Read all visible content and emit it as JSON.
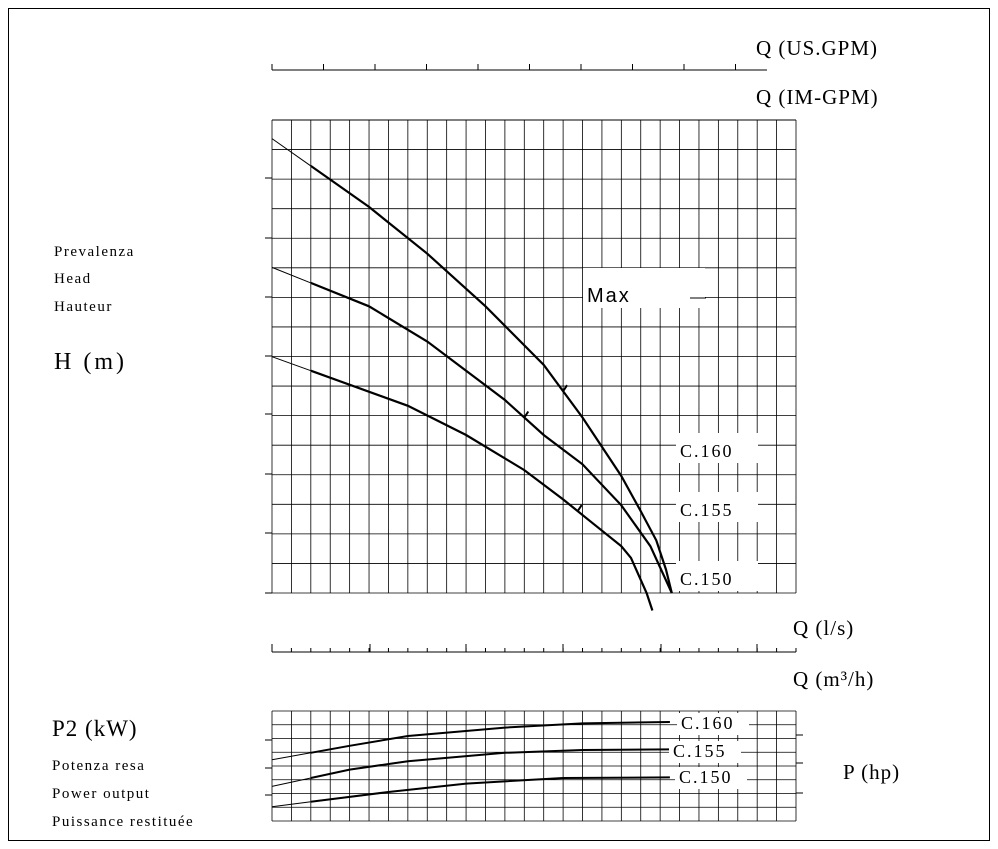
{
  "axes": {
    "q_us_gpm": "Q (US.GPM)",
    "q_im_gpm": "Q (IM-GPM)",
    "q_ls": "Q (l/s)",
    "q_m3h": "Q (m³/h)",
    "h_m": "H (m)",
    "p2_kw": "P2 (kW)",
    "p_hp": "P (hp)"
  },
  "head_labels": [
    "Prevalenza",
    "Head",
    "Hauteur"
  ],
  "power_labels": [
    "Potenza resa",
    "Power output",
    "Puissance restituée"
  ],
  "chart_data": [
    {
      "type": "line",
      "title": "",
      "xlabel": "Q (l/s)",
      "ylabel": "H (m)",
      "annotation": "Max",
      "series": [
        {
          "name": "C.160",
          "x": [
            2,
            5,
            8,
            11,
            14,
            16,
            18,
            19,
            19.8,
            20.3,
            20.6
          ],
          "y": [
            7.3,
            6.6,
            5.8,
            4.9,
            3.9,
            3.0,
            2.0,
            1.4,
            0.9,
            0.4,
            0.0
          ]
        },
        {
          "name": "C.155",
          "x": [
            2,
            5,
            8,
            10,
            12,
            14,
            16,
            18,
            19.5,
            20.6
          ],
          "y": [
            5.3,
            4.9,
            4.3,
            3.8,
            3.3,
            2.7,
            2.2,
            1.5,
            0.8,
            0.0
          ]
        },
        {
          "name": "C.150",
          "x": [
            2,
            7,
            10,
            13,
            15,
            16.5,
            18,
            18.5,
            19.3,
            19.6
          ],
          "y": [
            3.8,
            3.2,
            2.7,
            2.1,
            1.6,
            1.2,
            0.8,
            0.6,
            0.0,
            -0.3
          ]
        }
      ]
    },
    {
      "type": "line",
      "title": "",
      "xlabel": "Q (m³/h)",
      "ylabel": "P2 (kW)",
      "series": [
        {
          "name": "C.160",
          "x": [
            2,
            4,
            7,
            12,
            16,
            20.5
          ],
          "y": [
            4.4,
            4.65,
            5.0,
            5.3,
            5.45,
            5.5
          ]
        },
        {
          "name": "C.155",
          "x": [
            2,
            4,
            7,
            12,
            16,
            20.5
          ],
          "y": [
            3.5,
            3.8,
            4.1,
            4.4,
            4.5,
            4.52
          ]
        },
        {
          "name": "C.150",
          "x": [
            2,
            6,
            10,
            15,
            20.5
          ],
          "y": [
            2.65,
            3.0,
            3.3,
            3.5,
            3.52
          ]
        }
      ]
    }
  ]
}
